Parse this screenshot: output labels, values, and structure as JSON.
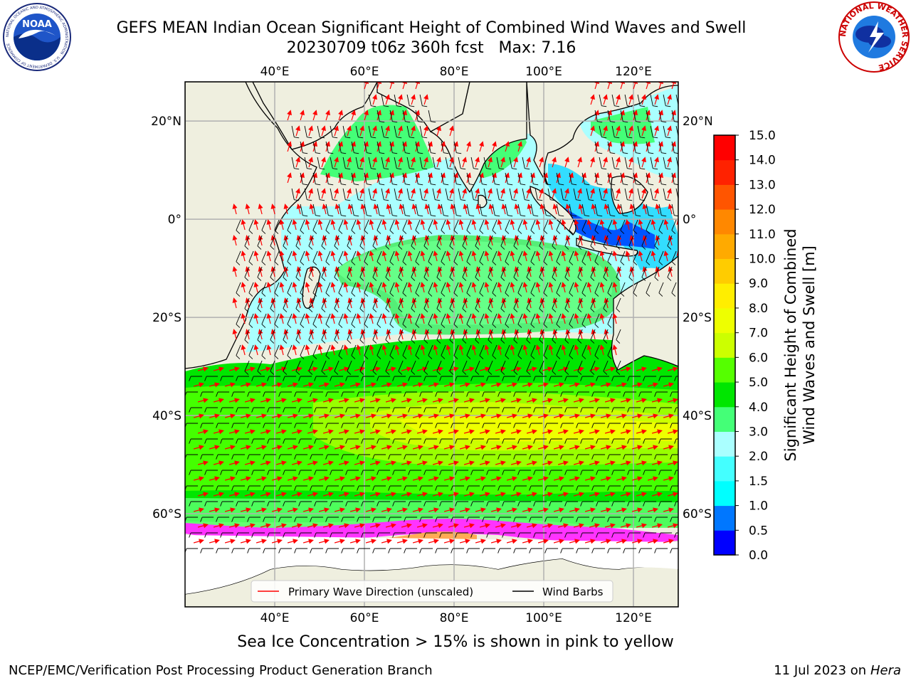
{
  "title": {
    "line1": "GEFS MEAN Indian Ocean Significant Height of Combined Wind Waves and Swell",
    "line2": "20230709 t06z 360h fcst   Max: 7.16"
  },
  "footnote": "Sea Ice Concentration > 15% is shown in pink to yellow",
  "credit_left": "NCEP/EMC/Verification Post Processing Product Generation Branch",
  "credit_right": {
    "date": "11 Jul 2023 on ",
    "host": "Hera"
  },
  "logos": {
    "noaa": {
      "name": "noaa-logo",
      "text": "NOAA",
      "ring_text": "NATIONAL OCEANIC AND ATMOSPHERIC ADMINISTRATION · U.S. DEPARTMENT OF COMMERCE"
    },
    "nws": {
      "name": "nws-logo",
      "ring_text": "NATIONAL WEATHER SERVICE"
    }
  },
  "map": {
    "lon_ticks": [
      "40°E",
      "60°E",
      "80°E",
      "100°E",
      "120°E"
    ],
    "lat_ticks": [
      "20°N",
      "0°",
      "20°S",
      "40°S",
      "60°S"
    ],
    "lon_values": [
      40,
      60,
      80,
      100,
      120
    ],
    "lat_values": [
      20,
      0,
      -20,
      -40,
      -60
    ],
    "lon_range": [
      20,
      130
    ],
    "lat_range": [
      -79,
      28
    ],
    "grid": true,
    "land_color": "#efefdf",
    "ice_colors": [
      "#ff33ff",
      "#ffaa55",
      "#ffee33"
    ]
  },
  "legend": {
    "items": [
      {
        "label": "Primary Wave Direction (unscaled)",
        "color": "#ff0000"
      },
      {
        "label": "Wind Barbs",
        "color": "#000000"
      }
    ],
    "placement": "bottom-center"
  },
  "colorbar": {
    "label_line1": "Significant Height of Combined",
    "label_line2": "Wind Waves and Swell [m]",
    "ticks": [
      "0.0",
      "0.5",
      "1.0",
      "1.5",
      "2.0",
      "3.0",
      "4.0",
      "5.0",
      "6.0",
      "7.0",
      "8.0",
      "9.0",
      "10.0",
      "11.0",
      "12.0",
      "13.0",
      "14.0",
      "15.0"
    ],
    "colors": [
      "#0000ff",
      "#0077ff",
      "#00ffff",
      "#44ffff",
      "#aaffff",
      "#44ff77",
      "#00e600",
      "#55ff00",
      "#ccff00",
      "#eeff00",
      "#ffee00",
      "#ffcc00",
      "#ffaa00",
      "#ff8800",
      "#ff5500",
      "#ff2200",
      "#ff0000"
    ]
  },
  "chart_data": {
    "type": "map",
    "title": "GEFS MEAN Indian Ocean Significant Height of Combined Wind Waves and Swell",
    "subtitle": "20230709 t06z 360h fcst   Max: 7.16",
    "max_value": 7.16,
    "units": "m",
    "regions": [
      {
        "lat": [
          -78,
          -65
        ],
        "value": null,
        "kind": "ice-shelf"
      },
      {
        "lat": [
          -65,
          -62
        ],
        "value": 2.5
      },
      {
        "lat": [
          -62,
          -52
        ],
        "value": 4.5
      },
      {
        "lat": [
          -52,
          -42
        ],
        "value": 6.0
      },
      {
        "lat": [
          -42,
          -33
        ],
        "value": 4.8
      },
      {
        "lat": [
          -33,
          -22
        ],
        "value": 3.5
      },
      {
        "lat": [
          -22,
          -2
        ],
        "value": 3.2
      },
      {
        "lat": [
          -2,
          4
        ],
        "value": 2.4
      },
      {
        "lat": [
          4,
          22
        ],
        "value": 3.0
      }
    ]
  }
}
